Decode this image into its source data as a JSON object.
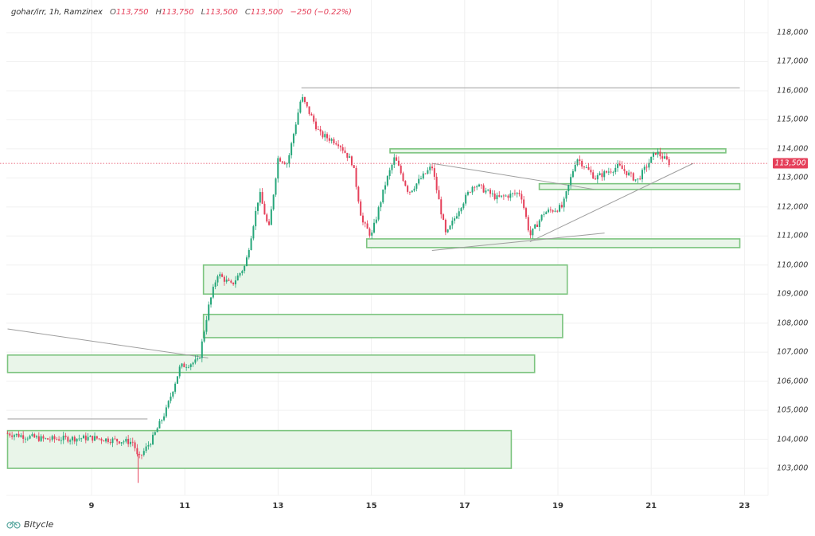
{
  "legend": {
    "symbol": "gohar/irr, 1h, Ramzinex",
    "open_label": "O",
    "open": "113,750",
    "high_label": "H",
    "high": "113,750",
    "low_label": "L",
    "low": "113,500",
    "close_label": "C",
    "close": "113,500",
    "change": "−250 (−0.22%)"
  },
  "price_badge": "113,500",
  "brand": {
    "name": "Bitycle",
    "icon": "bicycle-icon"
  },
  "colors": {
    "up": "#26a67a",
    "down": "#e5405a",
    "zone_fill": "#e9f5e9",
    "zone_stroke": "#7cc47f",
    "trendline": "#9e9e9e",
    "grid": "#f0f0f0"
  },
  "chart_data": {
    "type": "candlestick",
    "title": "gohar/irr, 1h, Ramzinex",
    "timeframe": "1h",
    "xlabel": "",
    "ylabel": "",
    "x_ticks": [
      "9",
      "11",
      "13",
      "15",
      "17",
      "19",
      "21",
      "23"
    ],
    "y_ticks": [
      "103,000",
      "104,000",
      "105,000",
      "106,000",
      "107,000",
      "108,000",
      "109,000",
      "110,000",
      "111,000",
      "112,000",
      "113,000",
      "114,000",
      "115,000",
      "116,000",
      "117,000",
      "118,000"
    ],
    "ylim": [
      102200,
      118600
    ],
    "last_price": 113500,
    "ohlc_last": {
      "open": 113750,
      "high": 113750,
      "low": 113500,
      "close": 113500,
      "change": -250,
      "change_pct": -0.22
    },
    "price_path": [
      {
        "day": 7.2,
        "price": 104200
      },
      {
        "day": 8.0,
        "price": 104000
      },
      {
        "day": 9.0,
        "price": 104050
      },
      {
        "day": 9.9,
        "price": 103900
      },
      {
        "day": 10.0,
        "price": 103300
      },
      {
        "day": 10.3,
        "price": 104000
      },
      {
        "day": 10.6,
        "price": 105000
      },
      {
        "day": 10.9,
        "price": 106500
      },
      {
        "day": 11.3,
        "price": 106700
      },
      {
        "day": 11.5,
        "price": 108500
      },
      {
        "day": 11.7,
        "price": 109700
      },
      {
        "day": 12.0,
        "price": 109300
      },
      {
        "day": 12.3,
        "price": 110000
      },
      {
        "day": 12.6,
        "price": 112500
      },
      {
        "day": 12.8,
        "price": 111200
      },
      {
        "day": 13.0,
        "price": 113700
      },
      {
        "day": 13.2,
        "price": 113500
      },
      {
        "day": 13.5,
        "price": 115800
      },
      {
        "day": 13.9,
        "price": 114500
      },
      {
        "day": 14.3,
        "price": 114200
      },
      {
        "day": 14.6,
        "price": 113500
      },
      {
        "day": 14.8,
        "price": 111500
      },
      {
        "day": 15.0,
        "price": 111000
      },
      {
        "day": 15.3,
        "price": 112800
      },
      {
        "day": 15.5,
        "price": 113700
      },
      {
        "day": 15.8,
        "price": 112500
      },
      {
        "day": 16.3,
        "price": 113400
      },
      {
        "day": 16.6,
        "price": 111000
      },
      {
        "day": 16.9,
        "price": 112000
      },
      {
        "day": 17.2,
        "price": 112800
      },
      {
        "day": 17.7,
        "price": 112300
      },
      {
        "day": 18.2,
        "price": 112500
      },
      {
        "day": 18.4,
        "price": 111000
      },
      {
        "day": 18.7,
        "price": 111800
      },
      {
        "day": 19.1,
        "price": 112000
      },
      {
        "day": 19.4,
        "price": 113700
      },
      {
        "day": 19.8,
        "price": 113000
      },
      {
        "day": 20.3,
        "price": 113400
      },
      {
        "day": 20.7,
        "price": 112900
      },
      {
        "day": 21.1,
        "price": 113900
      },
      {
        "day": 21.4,
        "price": 113500
      }
    ],
    "zones": [
      {
        "name": "zone-top",
        "x0_day": 15.4,
        "x1_day": 22.6,
        "y_top": 114000,
        "y_bottom": 113900
      },
      {
        "name": "zone-mid",
        "x0_day": 18.6,
        "x1_day": 22.9,
        "y_top": 112800,
        "y_bottom": 112600
      },
      {
        "name": "zone-support",
        "x0_day": 14.9,
        "x1_day": 22.9,
        "y_top": 110900,
        "y_bottom": 110600
      },
      {
        "name": "zone-110k",
        "x0_day": 11.4,
        "x1_day": 19.2,
        "y_top": 110000,
        "y_bottom": 109000
      },
      {
        "name": "zone-108k",
        "x0_day": 11.4,
        "x1_day": 19.1,
        "y_top": 108300,
        "y_bottom": 107500
      },
      {
        "name": "zone-107k",
        "x0_day": 7.2,
        "x1_day": 18.5,
        "y_top": 106900,
        "y_bottom": 106300
      },
      {
        "name": "zone-104k",
        "x0_day": 7.2,
        "x1_day": 18.0,
        "y_top": 104300,
        "y_bottom": 103000
      }
    ],
    "trendlines": [
      {
        "name": "high-line",
        "from": [
          13.5,
          116100
        ],
        "to": [
          22.9,
          116100
        ]
      },
      {
        "name": "left-resistance",
        "from": [
          7.2,
          107800
        ],
        "to": [
          11.5,
          106800
        ]
      },
      {
        "name": "left-horizontal",
        "from": [
          7.2,
          104700
        ],
        "to": [
          10.2,
          104700
        ]
      },
      {
        "name": "descending",
        "from": [
          16.3,
          113500
        ],
        "to": [
          19.8,
          112600
        ]
      },
      {
        "name": "ascending",
        "from": [
          18.4,
          110800
        ],
        "to": [
          21.9,
          113500
        ]
      },
      {
        "name": "lower-rising",
        "from": [
          16.3,
          110500
        ],
        "to": [
          20.0,
          111100
        ]
      }
    ],
    "grid": true
  }
}
